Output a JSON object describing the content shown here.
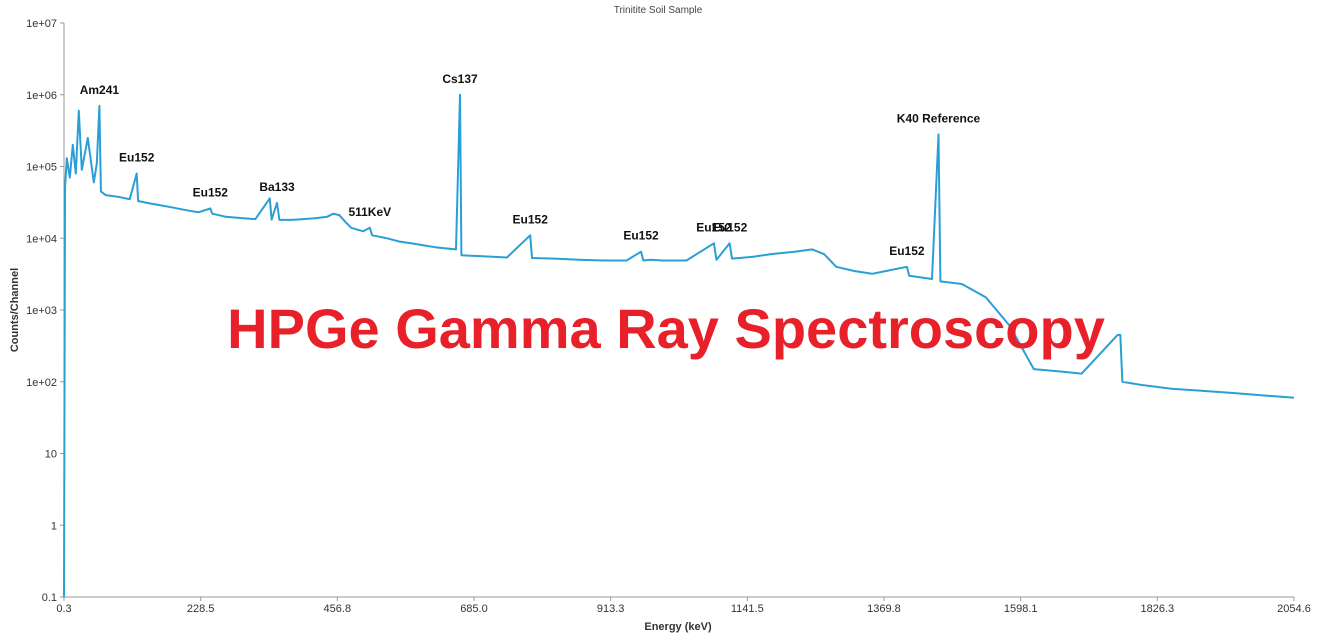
{
  "chart_data": {
    "type": "line",
    "title": "Trinitite Soil Sample",
    "xlabel": "Energy (keV)",
    "ylabel": "Counts/Channel",
    "xlim": [
      0.3,
      2054.6
    ],
    "ylim": [
      0.1,
      10000000
    ],
    "yscale": "log",
    "grid": false,
    "x_ticks": [
      "0.3",
      "228.5",
      "456.8",
      "685.0",
      "913.3",
      "1141.5",
      "1369.8",
      "1598.1",
      "1826.3",
      "2054.6"
    ],
    "y_ticks": [
      "1e+07",
      "1e+06",
      "1e+05",
      "1e+04",
      "1e+03",
      "1e+02",
      "10",
      "1",
      "0.1"
    ],
    "series": [
      {
        "color": "#2a9fd6",
        "points": [
          [
            0.3,
            0.1
          ],
          [
            2,
            50000
          ],
          [
            5,
            130000
          ],
          [
            10,
            70000
          ],
          [
            15,
            200000
          ],
          [
            20,
            80000
          ],
          [
            25,
            600000
          ],
          [
            30,
            90000
          ],
          [
            40,
            250000
          ],
          [
            50,
            60000
          ],
          [
            55,
            110000
          ],
          [
            59.5,
            700000
          ],
          [
            62,
            45000
          ],
          [
            70,
            40000
          ],
          [
            90,
            38000
          ],
          [
            110,
            35000
          ],
          [
            121.8,
            80000
          ],
          [
            124,
            33000
          ],
          [
            140,
            31000
          ],
          [
            160,
            29000
          ],
          [
            180,
            27000
          ],
          [
            200,
            25000
          ],
          [
            225,
            23000
          ],
          [
            244.7,
            26000
          ],
          [
            248,
            22000
          ],
          [
            270,
            20000
          ],
          [
            300,
            19000
          ],
          [
            320,
            18500
          ],
          [
            344,
            36000
          ],
          [
            347,
            18200
          ],
          [
            356,
            31000
          ],
          [
            360,
            18000
          ],
          [
            380,
            18000
          ],
          [
            400,
            18500
          ],
          [
            420,
            19000
          ],
          [
            440,
            20000
          ],
          [
            450,
            22000
          ],
          [
            460,
            21000
          ],
          [
            470,
            17000
          ],
          [
            480,
            14000
          ],
          [
            500,
            12500
          ],
          [
            511,
            14000
          ],
          [
            515,
            11000
          ],
          [
            540,
            10000
          ],
          [
            560,
            9000
          ],
          [
            580,
            8500
          ],
          [
            600,
            8000
          ],
          [
            620,
            7500
          ],
          [
            640,
            7200
          ],
          [
            655,
            7000
          ],
          [
            661.7,
            1000000
          ],
          [
            664,
            5800
          ],
          [
            680,
            5700
          ],
          [
            700,
            5600
          ],
          [
            740,
            5400
          ],
          [
            778.9,
            11000
          ],
          [
            782,
            5300
          ],
          [
            820,
            5200
          ],
          [
            860,
            5000
          ],
          [
            900,
            4900
          ],
          [
            940,
            4900
          ],
          [
            964,
            6500
          ],
          [
            968,
            4900
          ],
          [
            980,
            5000
          ],
          [
            1000,
            4900
          ],
          [
            1040,
            4900
          ],
          [
            1085.8,
            8500
          ],
          [
            1090,
            5000
          ],
          [
            1112,
            8500
          ],
          [
            1116,
            5200
          ],
          [
            1150,
            5500
          ],
          [
            1180,
            6000
          ],
          [
            1220,
            6500
          ],
          [
            1250,
            7000
          ],
          [
            1270,
            6000
          ],
          [
            1290,
            4000
          ],
          [
            1320,
            3500
          ],
          [
            1350,
            3200
          ],
          [
            1408,
            4000
          ],
          [
            1412,
            3000
          ],
          [
            1450,
            2700
          ],
          [
            1460.8,
            280000
          ],
          [
            1464,
            2500
          ],
          [
            1500,
            2300
          ],
          [
            1540,
            1500
          ],
          [
            1580,
            600
          ],
          [
            1620,
            150
          ],
          [
            1660,
            140
          ],
          [
            1700,
            130
          ],
          [
            1760,
            450
          ],
          [
            1764.5,
            450
          ],
          [
            1768,
            100
          ],
          [
            1800,
            90
          ],
          [
            1850,
            80
          ],
          [
            1900,
            75
          ],
          [
            1950,
            70
          ],
          [
            2000,
            65
          ],
          [
            2054.6,
            60
          ]
        ]
      }
    ],
    "annotations": [
      {
        "text": "Am241",
        "x": 59.5,
        "y": 700000
      },
      {
        "text": "Eu152",
        "x": 121.8,
        "y": 80000
      },
      {
        "text": "Eu152",
        "x": 244.7,
        "y": 26000
      },
      {
        "text": "Ba133",
        "x": 356,
        "y": 31000
      },
      {
        "text": "511KeV",
        "x": 511,
        "y": 14000
      },
      {
        "text": "Cs137",
        "x": 661.7,
        "y": 1000000
      },
      {
        "text": "Eu152",
        "x": 778.9,
        "y": 11000
      },
      {
        "text": "Eu152",
        "x": 964,
        "y": 6500
      },
      {
        "text": "Eu152",
        "x": 1085.8,
        "y": 8500
      },
      {
        "text": "Eu152",
        "x": 1112,
        "y": 8500
      },
      {
        "text": "K40 Reference",
        "x": 1460.8,
        "y": 280000
      },
      {
        "text": "Eu152",
        "x": 1408,
        "y": 4000
      }
    ]
  },
  "overlay": {
    "headline": "HPGe Gamma Ray Spectroscopy",
    "color": "#e8202a"
  }
}
